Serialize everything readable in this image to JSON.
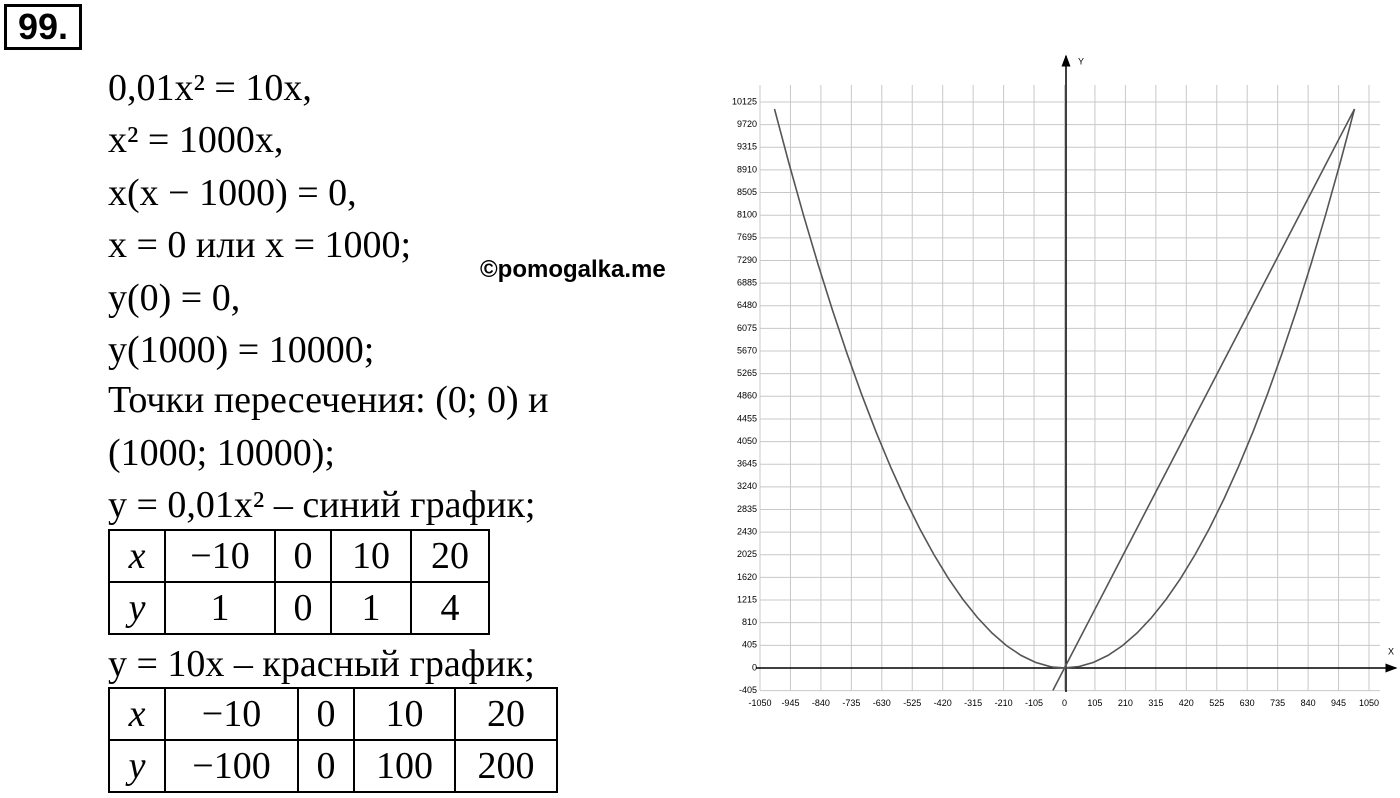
{
  "number": "99.",
  "lines": [
    "0,01x² = 10x,",
    "x² = 1000x,",
    "x(x − 1000) = 0,",
    "x = 0 или x = 1000;",
    "y(0) = 0,",
    "y(1000) = 10000;",
    "Точки пересечения: (0; 0) и",
    "(1000; 10000);",
    "y = 0,01x² – синий график;"
  ],
  "table1": {
    "rows": [
      [
        "x",
        "−10",
        "0",
        "10",
        "20"
      ],
      [
        "y",
        "1",
        "0",
        "1",
        "4"
      ]
    ]
  },
  "line2": "y = 10x – красный график;",
  "table2": {
    "rows": [
      [
        "x",
        "−10",
        "0",
        "10",
        "20"
      ],
      [
        "y",
        "−100",
        "0",
        "100",
        "200"
      ]
    ]
  },
  "watermark": "©pomogalka.me",
  "chart_data": {
    "type": "line",
    "xlabel": "X",
    "ylabel": "Y",
    "x": [
      -1000,
      -950,
      -900,
      -850,
      -800,
      -750,
      -700,
      -650,
      -600,
      -550,
      -500,
      -450,
      -400,
      -350,
      -300,
      -250,
      -200,
      -150,
      -100,
      -50,
      -40,
      0,
      50,
      100,
      150,
      200,
      250,
      300,
      350,
      400,
      450,
      500,
      550,
      600,
      650,
      700,
      750,
      800,
      850,
      900,
      950,
      1000
    ],
    "series": [
      {
        "color": "#555555",
        "values": [
          10000,
          9025,
          8100,
          7225,
          6400,
          5625,
          4900,
          4225,
          3600,
          3025,
          2500,
          2025,
          1600,
          1225,
          900,
          625,
          400,
          225,
          100,
          25,
          16,
          0,
          25,
          100,
          225,
          400,
          625,
          900,
          1225,
          1600,
          2025,
          2500,
          3025,
          3600,
          4225,
          4900,
          5625,
          6400,
          7225,
          8100,
          9025,
          10000
        ]
      },
      {
        "color": "#555555",
        "values": [
          null,
          null,
          null,
          null,
          null,
          null,
          null,
          null,
          null,
          null,
          null,
          null,
          null,
          null,
          null,
          null,
          null,
          null,
          null,
          null,
          -400,
          0,
          500,
          1000,
          1500,
          2000,
          2500,
          3000,
          3500,
          4000,
          4500,
          5000,
          5500,
          6000,
          6500,
          7000,
          7500,
          8000,
          8500,
          9000,
          9500,
          10000
        ]
      }
    ],
    "xlim": [
      -1050,
      1050
    ],
    "ylim": [
      -405,
      10125
    ],
    "xticks": [
      -1050,
      -945,
      -840,
      -735,
      -630,
      -525,
      -420,
      -315,
      -210,
      -105,
      0,
      105,
      210,
      315,
      420,
      525,
      630,
      735,
      840,
      945,
      1050
    ],
    "yticks": [
      -405,
      0,
      405,
      810,
      1215,
      1620,
      2025,
      2430,
      2835,
      3240,
      3645,
      4050,
      4455,
      4860,
      5265,
      5670,
      6075,
      6480,
      6885,
      7290,
      7695,
      8100,
      8505,
      8910,
      9315,
      9720,
      10125
    ],
    "grid": true
  }
}
